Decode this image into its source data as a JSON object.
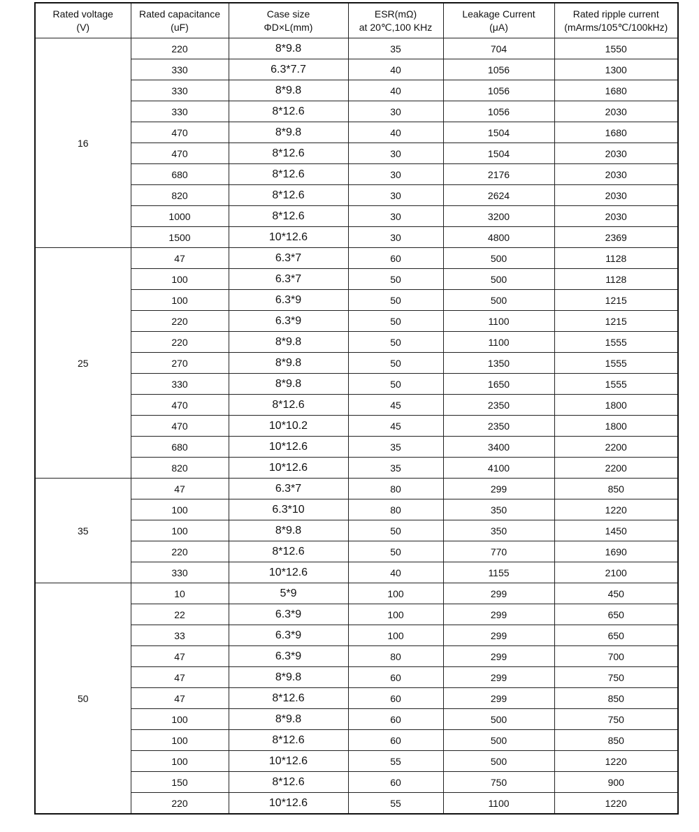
{
  "headers": [
    {
      "line1": "Rated voltage",
      "line2": "(V)"
    },
    {
      "line1": "Rated capacitance",
      "line2": "(uF)"
    },
    {
      "line1": "Case  size",
      "line2": "ΦD×L(mm)"
    },
    {
      "line1": "ESR(mΩ)",
      "line2": "at 20℃,100 KHz"
    },
    {
      "line1": "Leakage Current",
      "line2": "(μA)"
    },
    {
      "line1": "Rated ripple current",
      "line2": "(mArms/105℃/100kHz)"
    }
  ],
  "groups": [
    {
      "voltage": "16",
      "rows": [
        [
          "220",
          "8*9.8",
          "35",
          "704",
          "1550"
        ],
        [
          "330",
          "6.3*7.7",
          "40",
          "1056",
          "1300"
        ],
        [
          "330",
          "8*9.8",
          "40",
          "1056",
          "1680"
        ],
        [
          "330",
          "8*12.6",
          "30",
          "1056",
          "2030"
        ],
        [
          "470",
          "8*9.8",
          "40",
          "1504",
          "1680"
        ],
        [
          "470",
          "8*12.6",
          "30",
          "1504",
          "2030"
        ],
        [
          "680",
          "8*12.6",
          "30",
          "2176",
          "2030"
        ],
        [
          "820",
          "8*12.6",
          "30",
          "2624",
          "2030"
        ],
        [
          "1000",
          "8*12.6",
          "30",
          "3200",
          "2030"
        ],
        [
          "1500",
          "10*12.6",
          "30",
          "4800",
          "2369"
        ]
      ]
    },
    {
      "voltage": "25",
      "rows": [
        [
          "47",
          "6.3*7",
          "60",
          "500",
          "1128"
        ],
        [
          "100",
          "6.3*7",
          "50",
          "500",
          "1128"
        ],
        [
          "100",
          "6.3*9",
          "50",
          "500",
          "1215"
        ],
        [
          "220",
          "6.3*9",
          "50",
          "1100",
          "1215"
        ],
        [
          "220",
          "8*9.8",
          "50",
          "1100",
          "1555"
        ],
        [
          "270",
          "8*9.8",
          "50",
          "1350",
          "1555"
        ],
        [
          "330",
          "8*9.8",
          "50",
          "1650",
          "1555"
        ],
        [
          "470",
          "8*12.6",
          "45",
          "2350",
          "1800"
        ],
        [
          "470",
          "10*10.2",
          "45",
          "2350",
          "1800"
        ],
        [
          "680",
          "10*12.6",
          "35",
          "3400",
          "2200"
        ],
        [
          "820",
          "10*12.6",
          "35",
          "4100",
          "2200"
        ]
      ]
    },
    {
      "voltage": "35",
      "rows": [
        [
          "47",
          "6.3*7",
          "80",
          "299",
          "850"
        ],
        [
          "100",
          "6.3*10",
          "80",
          "350",
          "1220"
        ],
        [
          "100",
          "8*9.8",
          "50",
          "350",
          "1450"
        ],
        [
          "220",
          "8*12.6",
          "50",
          "770",
          "1690"
        ],
        [
          "330",
          "10*12.6",
          "40",
          "1155",
          "2100"
        ]
      ]
    },
    {
      "voltage": "50",
      "rows": [
        [
          "10",
          "5*9",
          "100",
          "299",
          "450"
        ],
        [
          "22",
          "6.3*9",
          "100",
          "299",
          "650"
        ],
        [
          "33",
          "6.3*9",
          "100",
          "299",
          "650"
        ],
        [
          "47",
          "6.3*9",
          "80",
          "299",
          "700"
        ],
        [
          "47",
          "8*9.8",
          "60",
          "299",
          "750"
        ],
        [
          "47",
          "8*12.6",
          "60",
          "299",
          "850"
        ],
        [
          "100",
          "8*9.8",
          "60",
          "500",
          "750"
        ],
        [
          "100",
          "8*12.6",
          "60",
          "500",
          "850"
        ],
        [
          "100",
          "10*12.6",
          "55",
          "500",
          "1220"
        ],
        [
          "150",
          "8*12.6",
          "60",
          "750",
          "900"
        ],
        [
          "220",
          "10*12.6",
          "55",
          "1100",
          "1220"
        ]
      ]
    }
  ]
}
